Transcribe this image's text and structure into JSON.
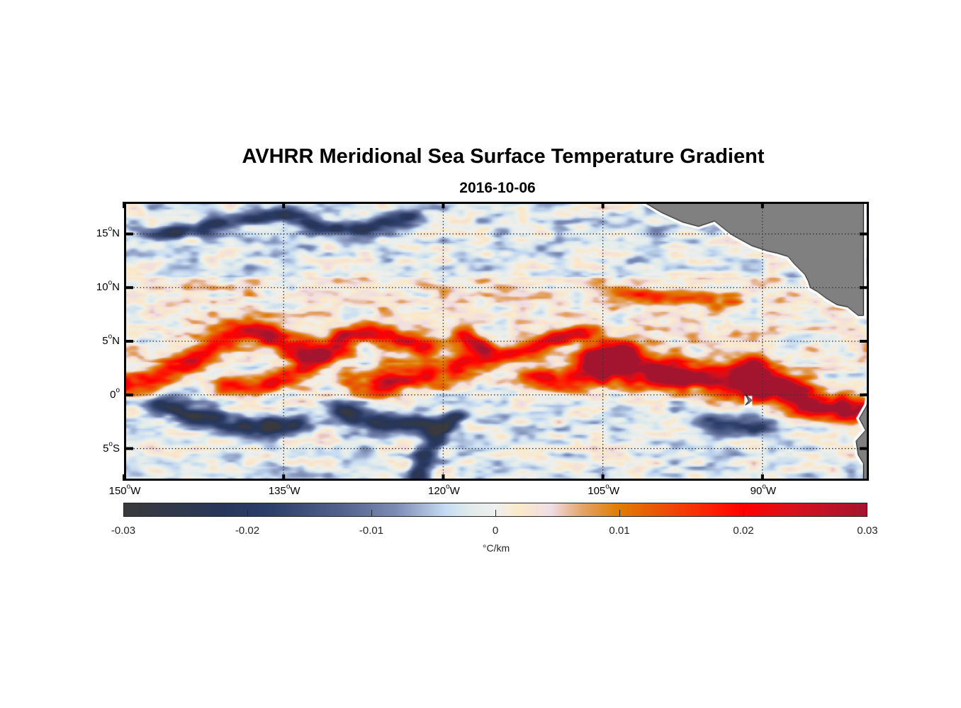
{
  "chart_data": {
    "type": "heatmap",
    "title": "AVHRR Meridional Sea Surface Temperature Gradient",
    "subtitle": "2016-10-06",
    "projection": "equirectangular map",
    "lon_range": [
      -150,
      -80
    ],
    "lat_range": [
      -8,
      18
    ],
    "grid": true,
    "x_ticks": [
      {
        "value": -150,
        "label": "150",
        "suffix": "W"
      },
      {
        "value": -135,
        "label": "135",
        "suffix": "W"
      },
      {
        "value": -120,
        "label": "120",
        "suffix": "W"
      },
      {
        "value": -105,
        "label": "105",
        "suffix": "W"
      },
      {
        "value": -90,
        "label": "90",
        "suffix": "W"
      }
    ],
    "y_ticks": [
      {
        "value": 15,
        "label": "15",
        "suffix": "N"
      },
      {
        "value": 10,
        "label": "10",
        "suffix": "N"
      },
      {
        "value": 5,
        "label": "5",
        "suffix": "N"
      },
      {
        "value": 0,
        "label": "0",
        "suffix": ""
      },
      {
        "value": -5,
        "label": "5",
        "suffix": "S"
      }
    ],
    "degree_symbol": "o",
    "colorbar": {
      "range": [
        -0.03,
        0.03
      ],
      "ticks": [
        -0.03,
        -0.02,
        -0.01,
        0,
        0.01,
        0.02,
        0.03
      ],
      "tick_labels": [
        "-0.03",
        "-0.02",
        "-0.01",
        "0",
        "0.01",
        "0.02",
        "0.03"
      ],
      "unit_label": "°C/km",
      "placement": "bottom-horizontal",
      "colormap_stops": [
        {
          "value": -0.03,
          "color": "#3a3a3c"
        },
        {
          "value": -0.022,
          "color": "#27365a"
        },
        {
          "value": -0.018,
          "color": "#2c3f6a"
        },
        {
          "value": -0.012,
          "color": "#55658f"
        },
        {
          "value": -0.008,
          "color": "#7d8cb5"
        },
        {
          "value": -0.004,
          "color": "#c6dbf3"
        },
        {
          "value": -0.002,
          "color": "#e2ecea"
        },
        {
          "value": 0.0,
          "color": "#efefef"
        },
        {
          "value": 0.002,
          "color": "#fbe9c8"
        },
        {
          "value": 0.0045,
          "color": "#efdde6"
        },
        {
          "value": 0.007,
          "color": "#e3a468"
        },
        {
          "value": 0.01,
          "color": "#e07b00"
        },
        {
          "value": 0.014,
          "color": "#ee4a08"
        },
        {
          "value": 0.018,
          "color": "#ff1800"
        },
        {
          "value": 0.02,
          "color": "#ff0000"
        },
        {
          "value": 0.024,
          "color": "#d8101c"
        },
        {
          "value": 0.03,
          "color": "#a3142e"
        }
      ]
    },
    "land_color": "#808080",
    "features": [
      {
        "name": "northern-front-east",
        "sign": "positive",
        "peak": 0.03,
        "path": [
          [
            -104.5,
            3.0
          ],
          [
            -102,
            2.3
          ],
          [
            -99,
            2.0
          ],
          [
            -96,
            1.6
          ],
          [
            -93,
            1.1
          ],
          [
            -91.5,
            0.8
          ]
        ],
        "width_deg": 1.6
      },
      {
        "name": "northern-front-far-east",
        "sign": "positive",
        "peak": 0.03,
        "path": [
          [
            -91,
            2.2
          ],
          [
            -89,
            1.0
          ],
          [
            -87,
            0.0
          ],
          [
            -85,
            -1.0
          ],
          [
            -83,
            -1.2
          ],
          [
            -81.5,
            -1.5
          ]
        ],
        "width_deg": 1.5
      },
      {
        "name": "front-105W-arch",
        "sign": "positive",
        "peak": 0.02,
        "path": [
          [
            -111,
            1.5
          ],
          [
            -108,
            1.3
          ],
          [
            -106,
            2.0
          ],
          [
            -105,
            3.6
          ],
          [
            -103,
            4.2
          ]
        ],
        "width_deg": 1.4
      },
      {
        "name": "equatorial-front-middle",
        "sign": "positive",
        "peak": 0.018,
        "path": [
          [
            -127,
            0.9
          ],
          [
            -124,
            1.5
          ],
          [
            -121,
            2.0
          ],
          [
            -118.5,
            2.6
          ],
          [
            -117,
            3.0
          ]
        ],
        "width_deg": 1.5
      },
      {
        "name": "tiw-crest-west",
        "sign": "positive",
        "peak": 0.016,
        "path": [
          [
            -150,
            0.9
          ],
          [
            -147,
            1.6
          ],
          [
            -144,
            3.0
          ],
          [
            -141.5,
            4.8
          ],
          [
            -139.5,
            6.0
          ],
          [
            -137,
            5.8
          ],
          [
            -135,
            4.8
          ],
          [
            -133,
            4.0
          ]
        ],
        "width_deg": 1.2
      },
      {
        "name": "tiw-crest-central",
        "sign": "positive",
        "peak": 0.018,
        "path": [
          [
            -140,
            0.8
          ],
          [
            -137,
            1.0
          ],
          [
            -134,
            2.0
          ],
          [
            -131,
            3.8
          ],
          [
            -129,
            5.6
          ],
          [
            -127,
            5.9
          ],
          [
            -124.5,
            5.5
          ],
          [
            -122,
            4.7
          ]
        ],
        "width_deg": 1.1
      },
      {
        "name": "tiw-crest-east",
        "sign": "positive",
        "peak": 0.017,
        "path": [
          [
            -118,
            5.4
          ],
          [
            -116.5,
            4.6
          ],
          [
            -115,
            3.8
          ],
          [
            -113,
            4.0
          ],
          [
            -111,
            4.8
          ],
          [
            -109,
            5.4
          ],
          [
            -107,
            5.8
          ]
        ],
        "width_deg": 0.9
      },
      {
        "name": "itcz-front-north",
        "sign": "positive",
        "peak": 0.011,
        "path": [
          [
            -103,
            9.6
          ],
          [
            -100,
            9.2
          ],
          [
            -97,
            9.1
          ],
          [
            -95,
            9.0
          ],
          [
            -93,
            8.5
          ]
        ],
        "width_deg": 0.9
      },
      {
        "name": "south-cold-band-west",
        "sign": "negative",
        "peak": -0.02,
        "path": [
          [
            -146,
            -1.0
          ],
          [
            -143,
            -2.0
          ],
          [
            -140,
            -2.8
          ],
          [
            -137,
            -3.0
          ],
          [
            -134,
            -2.6
          ]
        ],
        "width_deg": 1.0
      },
      {
        "name": "south-cold-band-central",
        "sign": "negative",
        "peak": -0.021,
        "path": [
          [
            -129,
            -1.5
          ],
          [
            -127,
            -2.4
          ],
          [
            -124,
            -2.6
          ],
          [
            -122,
            -2.7
          ]
        ],
        "width_deg": 1.1
      },
      {
        "name": "south-cold-diagonal",
        "sign": "negative",
        "peak": -0.018,
        "path": [
          [
            -119,
            -2.0
          ],
          [
            -120.5,
            -3.5
          ],
          [
            -121.5,
            -5.0
          ],
          [
            -122.5,
            -7.5
          ]
        ],
        "width_deg": 0.7
      },
      {
        "name": "south-cold-east",
        "sign": "negative",
        "peak": -0.015,
        "path": [
          [
            -95,
            -2.5
          ],
          [
            -93,
            -2.8
          ],
          [
            -91,
            -3.0
          ]
        ],
        "width_deg": 1.0
      },
      {
        "name": "north-cold-patches",
        "sign": "negative",
        "peak": -0.016,
        "path": [
          [
            -147,
            15.0
          ],
          [
            -143,
            15.5
          ],
          [
            -139,
            16.5
          ],
          [
            -135,
            16.8
          ],
          [
            -131,
            15.5
          ],
          [
            -127,
            15.6
          ],
          [
            -123,
            16.5
          ]
        ],
        "width_deg": 0.8
      }
    ]
  }
}
